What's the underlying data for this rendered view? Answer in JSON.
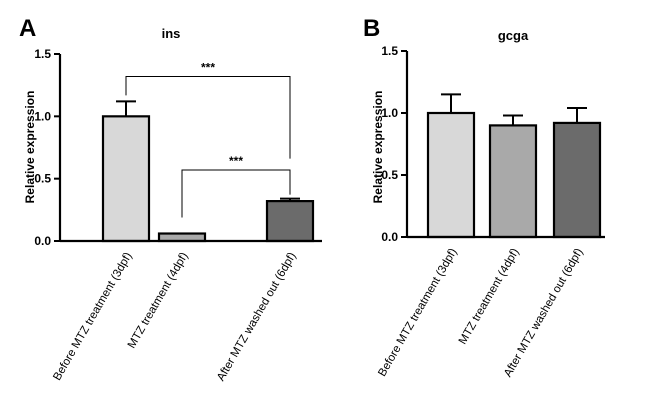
{
  "chart_data": [
    {
      "type": "bar",
      "panel": "A",
      "title": "ins",
      "ylabel": "Relative expression",
      "xlabel": "",
      "ylim": [
        0,
        1.5
      ],
      "yticks": [
        "0.0",
        "0.5",
        "1.0",
        "1.5"
      ],
      "categories": [
        "Before MTZ treatment (3dpf)",
        "MTZ treatment (4dpf)",
        "After MTZ washed out (6dpf)"
      ],
      "values": [
        1.0,
        0.06,
        0.32
      ],
      "errors": [
        0.12,
        0.0,
        0.02
      ],
      "colors": [
        "#d8d8d8",
        "#a9a9a9",
        "#6b6b6b"
      ],
      "significance": [
        {
          "from": 0,
          "to": 2,
          "label": "***",
          "level": 1.32
        },
        {
          "from": 1,
          "to": 2,
          "label": "***",
          "level": 0.57
        }
      ]
    },
    {
      "type": "bar",
      "panel": "B",
      "title": "gcga",
      "ylabel": "Relative expression",
      "xlabel": "",
      "ylim": [
        0,
        1.5
      ],
      "yticks": [
        "0.0",
        "0.5",
        "1.0",
        "1.5"
      ],
      "categories": [
        "Before MTZ treatment (3dpf)",
        "MTZ treatment (4dpf)",
        "After MTZ washed out (6dpf)"
      ],
      "values": [
        1.0,
        0.9,
        0.92
      ],
      "errors": [
        0.15,
        0.08,
        0.12
      ],
      "colors": [
        "#d8d8d8",
        "#a9a9a9",
        "#6b6b6b"
      ],
      "significance": []
    }
  ]
}
